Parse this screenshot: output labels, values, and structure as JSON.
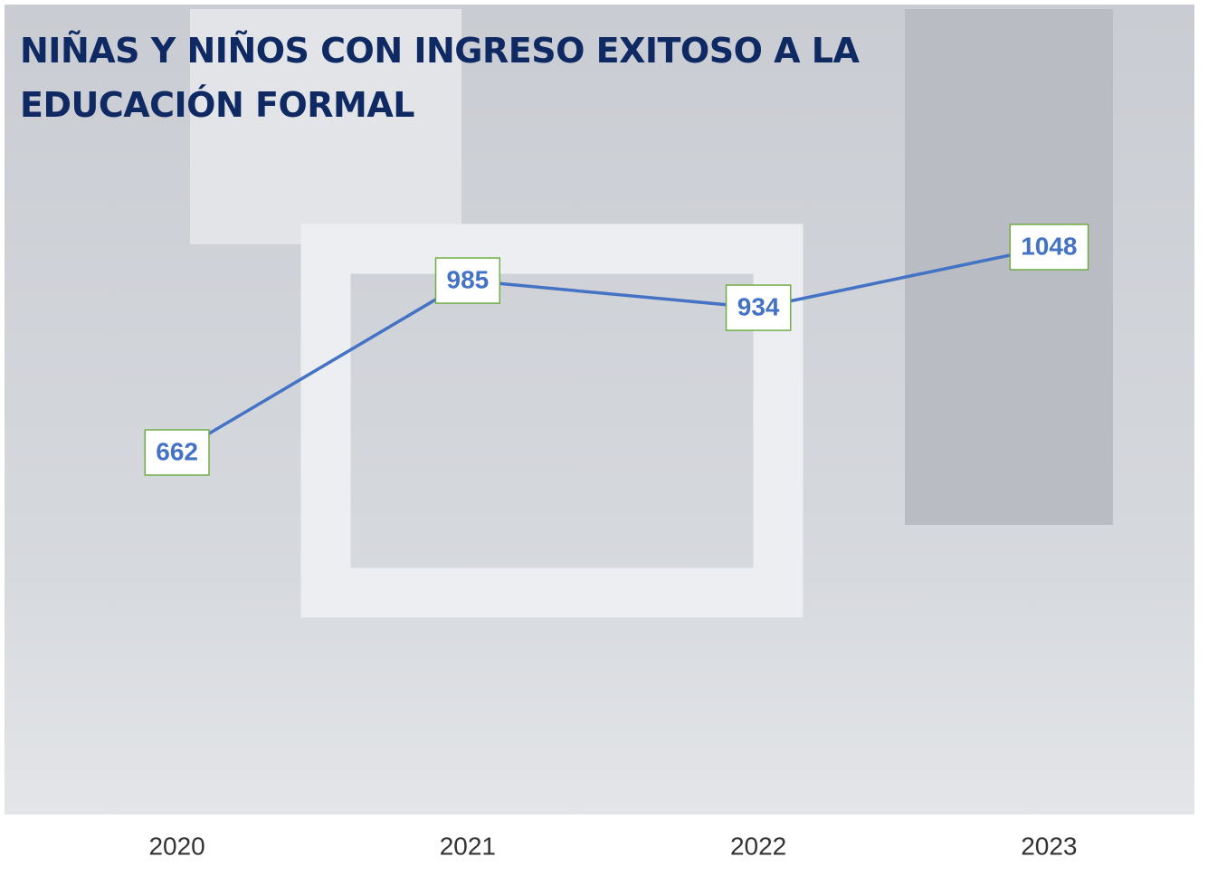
{
  "chart_data": {
    "type": "line",
    "title": "NIÑAS Y NIÑOS CON INGRESO EXITOSO A LA EDUCACIÓN FORMAL",
    "categories": [
      "2020",
      "2021",
      "2022",
      "2023"
    ],
    "values": [
      662,
      985,
      934,
      1048
    ],
    "color": "#4472c4"
  }
}
